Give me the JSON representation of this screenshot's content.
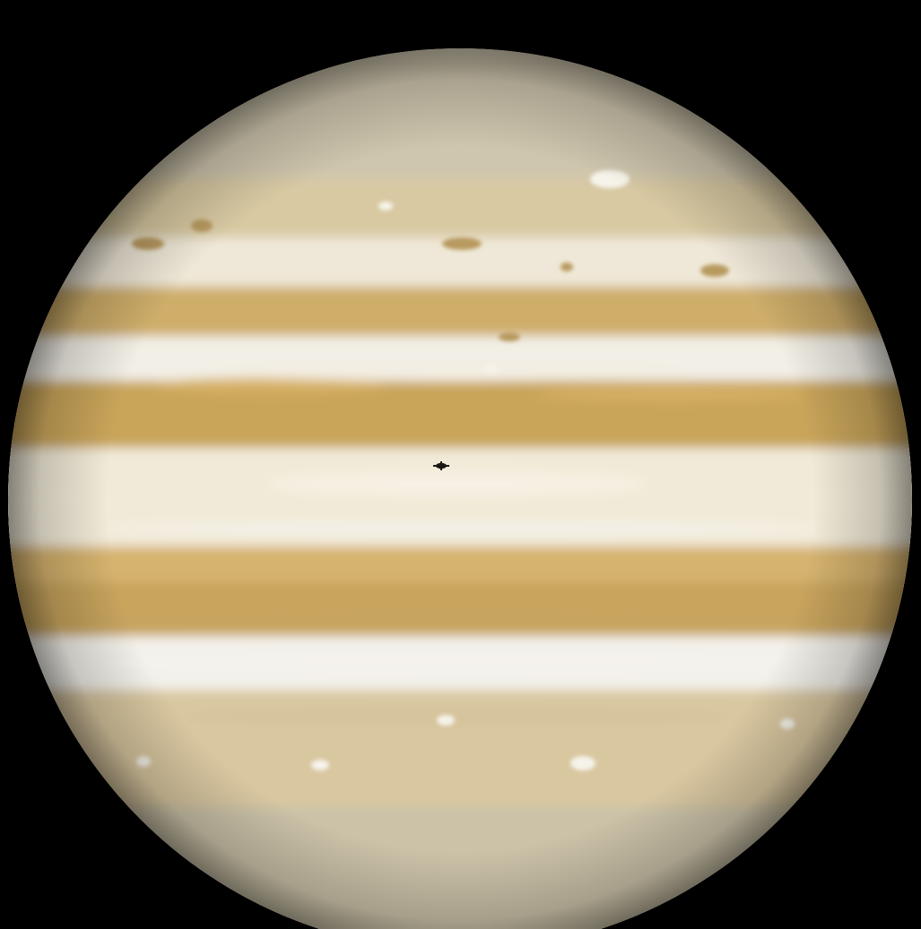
{
  "scene": {
    "subject": "planet",
    "background_color": "#000000"
  },
  "planet": {
    "icon": "planet-disc-icon",
    "base_color": "#e6dcc2",
    "limb_color": "#6f6a5c",
    "bands": [
      {
        "name": "north-polar-region",
        "color": "#cfc6ae"
      },
      {
        "name": "north-temperate-belt",
        "color": "#d8c9a2"
      },
      {
        "name": "north-temperate-zone",
        "color": "#efe8d8"
      },
      {
        "name": "north-north-belt",
        "color": "#cfae6a"
      },
      {
        "name": "north-tropical-zone",
        "color": "#f2efe6"
      },
      {
        "name": "north-equatorial-belt",
        "color": "#c9a55a"
      },
      {
        "name": "equatorial-zone",
        "color": "#f1ead8"
      },
      {
        "name": "south-equatorial-belt-north",
        "color": "#d6b36e"
      },
      {
        "name": "south-equatorial-belt-south",
        "color": "#c8a45d"
      },
      {
        "name": "south-tropical-zone",
        "color": "#f3f1ea"
      },
      {
        "name": "south-temperate-belt",
        "color": "#d9c7a0"
      },
      {
        "name": "south-polar-region",
        "color": "#cbc2a8"
      }
    ],
    "spots": [
      {
        "name": "white-oval",
        "color": "#f6f3ea"
      },
      {
        "name": "brown-spot",
        "color": "#b89a5e"
      }
    ]
  },
  "moon_shadow": {
    "icon": "moon-shadow-icon",
    "color": "#1a1714"
  }
}
